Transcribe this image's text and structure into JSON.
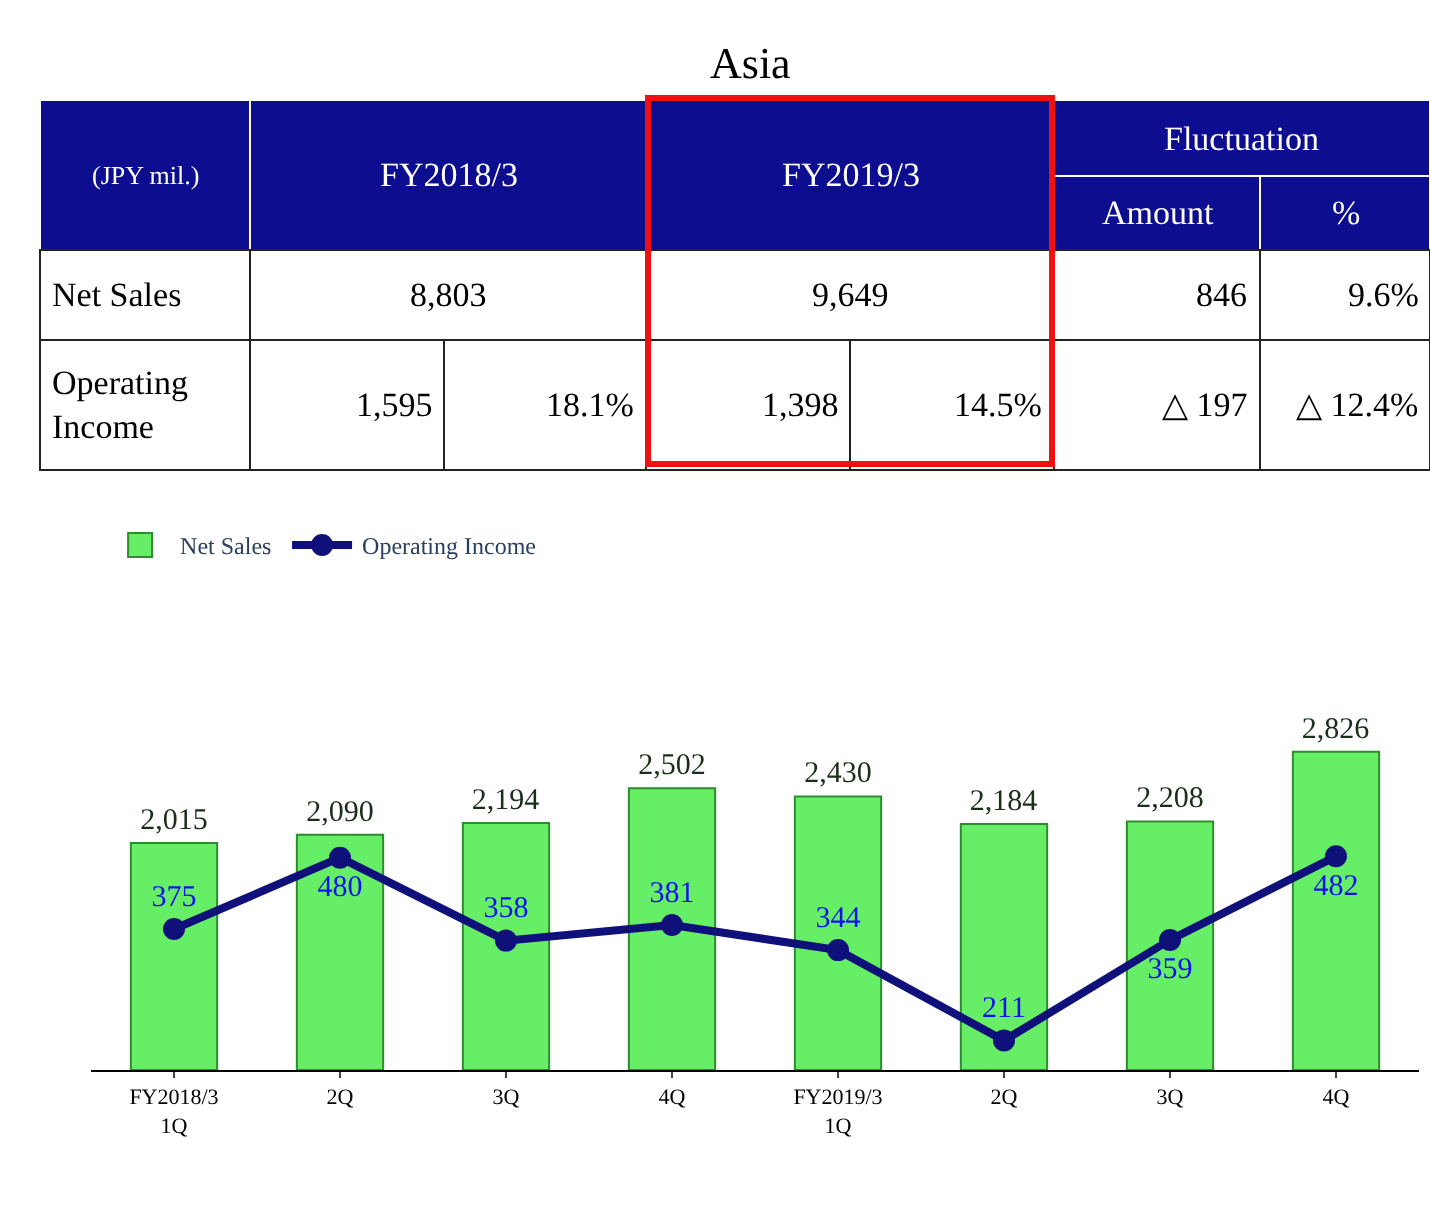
{
  "chart_data": [
    {
      "type": "other",
      "title": "Asia",
      "annotations": [
        "(JPY mil.)",
        "FY2018/3",
        "FY2019/3",
        "Fluctuation",
        "Amount",
        "%",
        "Net Sales",
        "8,803",
        "9,649",
        "846",
        "9.6%",
        "Operating\nIncome",
        "1,595",
        "18.1%",
        "1,398",
        "14.5%",
        "△ 197",
        "△ 12.4%"
      ]
    },
    {
      "type": "bar",
      "categories": [
        "FY2018/3\n1Q",
        "2Q",
        "3Q",
        "4Q",
        "FY2019/3\n1Q",
        "2Q",
        "3Q",
        "4Q"
      ],
      "legend": "top left",
      "series": [
        {
          "name": "Net Sales",
          "type": "bar",
          "color": "#66ee66",
          "values": [
            2015,
            2090,
            2194,
            2502,
            2430,
            2184,
            2208,
            2826
          ],
          "value_labels": [
            "2,015",
            "2,090",
            "2,194",
            "2,502",
            "2,430",
            "2,184",
            "2,208",
            "2,826"
          ]
        },
        {
          "name": "Operating Income",
          "type": "line",
          "axis": "y2",
          "color": "#10107a",
          "marker": "circle",
          "line_style": "solid",
          "values": [
            375,
            480,
            358,
            381,
            344,
            211,
            359,
            482
          ],
          "value_labels": [
            "375",
            "480",
            "358",
            "381",
            "344",
            "211",
            "359",
            "482"
          ]
        }
      ]
    }
  ]
}
